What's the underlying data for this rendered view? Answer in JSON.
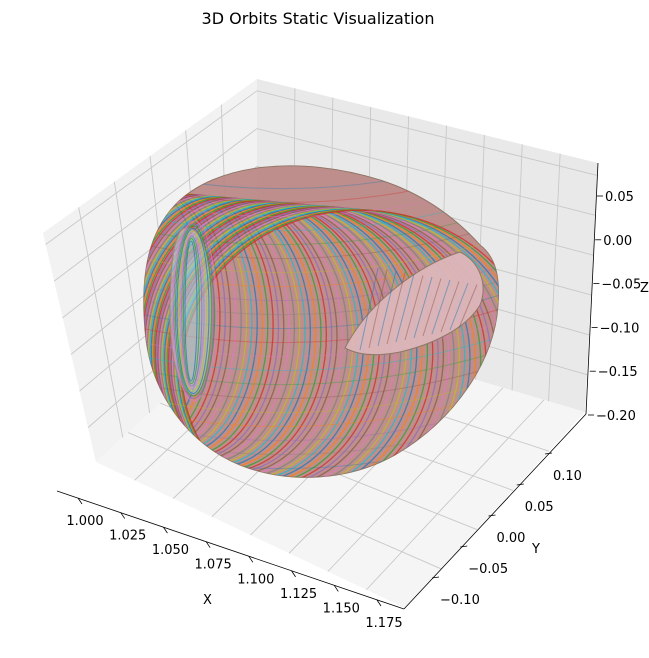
{
  "chart_data": {
    "type": "3d-surface",
    "title": "3D Orbits Static Visualization",
    "xlabel": "X",
    "ylabel": "Y",
    "zlabel": "Z",
    "x_ticks": [
      "1.000",
      "1.025",
      "1.050",
      "1.075",
      "1.100",
      "1.125",
      "1.150",
      "1.175"
    ],
    "y_ticks": [
      "−0.10",
      "−0.05",
      "0.00",
      "0.05",
      "0.10"
    ],
    "z_ticks": [
      "−0.20",
      "−0.15",
      "−0.10",
      "−0.05",
      "0.00",
      "0.05"
    ],
    "grid": true,
    "series_palette": [
      "#1f77b4",
      "#ff7f0e",
      "#2ca02c",
      "#d62728",
      "#9467bd",
      "#8c564b",
      "#e377c2",
      "#7f7f7f",
      "#bcbd22",
      "#17becf"
    ]
  }
}
